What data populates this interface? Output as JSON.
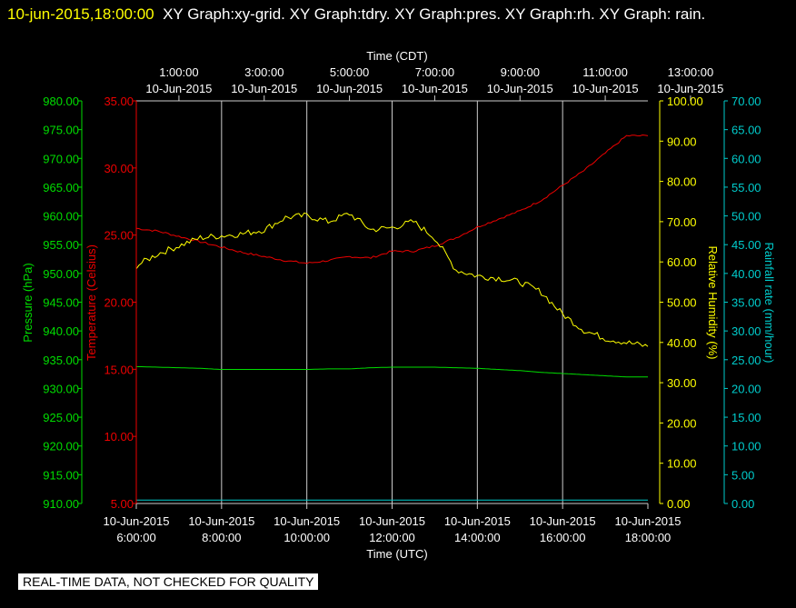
{
  "header": {
    "datetime": "10-jun-2015,18:00:00",
    "title": "XY Graph:xy-grid.  XY Graph:tdry.  XY Graph:pres.  XY Graph:rh.  XY Graph: rain."
  },
  "footer_notice": "REAL-TIME DATA, NOT CHECKED FOR QUALITY",
  "colors": {
    "background": "#000000",
    "pressure": "#00dd00",
    "temperature": "#ee0000",
    "humidity": "#ffff00",
    "rainfall": "#00cccc",
    "grid": "#cccccc"
  },
  "chart_data": {
    "type": "line",
    "x_range_utc": [
      "2015-06-10 06:00:00",
      "2015-06-10 18:00:00"
    ],
    "bottom_axis": {
      "label": "Time (UTC)",
      "ticks": [
        {
          "time": "10-Jun-2015",
          "hhmm": "6:00:00"
        },
        {
          "time": "10-Jun-2015",
          "hhmm": "8:00:00"
        },
        {
          "time": "10-Jun-2015",
          "hhmm": "10:00:00"
        },
        {
          "time": "10-Jun-2015",
          "hhmm": "12:00:00"
        },
        {
          "time": "10-Jun-2015",
          "hhmm": "14:00:00"
        },
        {
          "time": "10-Jun-2015",
          "hhmm": "16:00:00"
        },
        {
          "time": "10-Jun-2015",
          "hhmm": "18:00:00"
        }
      ]
    },
    "top_axis": {
      "label": "Time (CDT)",
      "ticks": [
        {
          "time": "1:00:00",
          "date": "10-Jun-2015"
        },
        {
          "time": "3:00:00",
          "date": "10-Jun-2015"
        },
        {
          "time": "5:00:00",
          "date": "10-Jun-2015"
        },
        {
          "time": "7:00:00",
          "date": "10-Jun-2015"
        },
        {
          "time": "9:00:00",
          "date": "10-Jun-2015"
        },
        {
          "time": "11:00:00",
          "date": "10-Jun-2015"
        },
        {
          "time": "13:00:00",
          "date": "10-Jun-2015"
        }
      ]
    },
    "axes": {
      "pressure": {
        "label": "Pressure (hPa)",
        "ylim": [
          910,
          980
        ],
        "ticks": [
          "910.00",
          "915.00",
          "920.00",
          "925.00",
          "930.00",
          "935.00",
          "940.00",
          "945.00",
          "950.00",
          "955.00",
          "960.00",
          "965.00",
          "970.00",
          "975.00",
          "980.00"
        ]
      },
      "temperature": {
        "label": "Temperature (Celsius)",
        "ylim": [
          5,
          35
        ],
        "ticks": [
          "5.00",
          "10.00",
          "15.00",
          "20.00",
          "25.00",
          "30.00",
          "35.00"
        ]
      },
      "humidity": {
        "label": "Relative Humidity (%)",
        "ylim": [
          0,
          100
        ],
        "ticks": [
          "0.00",
          "10.00",
          "20.00",
          "30.00",
          "40.00",
          "50.00",
          "60.00",
          "70.00",
          "80.00",
          "90.00",
          "100.00"
        ]
      },
      "rainfall": {
        "label": "Rainfall rate (mm/hour)",
        "ylim": [
          0,
          70
        ],
        "ticks": [
          "0.00",
          "5.00",
          "10.00",
          "15.00",
          "20.00",
          "25.00",
          "30.00",
          "35.00",
          "40.00",
          "45.00",
          "50.00",
          "55.00",
          "60.00",
          "65.00",
          "70.00"
        ]
      }
    },
    "x_hours_utc": [
      6,
      6.5,
      7,
      7.5,
      8,
      8.5,
      9,
      9.5,
      10,
      10.5,
      11,
      11.5,
      12,
      12.5,
      13,
      13.5,
      14,
      14.5,
      15,
      15.5,
      16,
      16.5,
      17,
      17.5,
      18
    ],
    "series": [
      {
        "key": "temperature",
        "axis": "temperature",
        "values": [
          25.5,
          25.3,
          24.9,
          24.5,
          24.1,
          23.7,
          23.4,
          23.1,
          22.9,
          23.1,
          23.4,
          23.3,
          23.8,
          23.8,
          24.2,
          24.8,
          25.6,
          26.2,
          26.8,
          27.6,
          28.7,
          29.8,
          31.1,
          32.4,
          32.4
        ]
      },
      {
        "key": "pressure",
        "axis": "pressure",
        "values": [
          933.8,
          933.7,
          933.6,
          933.5,
          933.3,
          933.3,
          933.3,
          933.3,
          933.3,
          933.4,
          933.4,
          933.6,
          933.7,
          933.7,
          933.7,
          933.6,
          933.5,
          933.3,
          933.1,
          932.8,
          932.6,
          932.4,
          932.2,
          932.0,
          932.0
        ]
      },
      {
        "key": "humidity",
        "axis": "humidity",
        "values": [
          59.0,
          62.0,
          64.0,
          66.0,
          66.5,
          67.0,
          68.0,
          71.0,
          71.5,
          70.0,
          72.0,
          68.0,
          68.5,
          70.0,
          66.0,
          58.0,
          56.5,
          56.0,
          55.0,
          52.5,
          47.0,
          43.0,
          41.0,
          40.0,
          39.0
        ]
      },
      {
        "key": "rainfall",
        "axis": "rainfall",
        "values": [
          0.6,
          0.6,
          0.6,
          0.6,
          0.6,
          0.6,
          0.6,
          0.6,
          0.6,
          0.6,
          0.6,
          0.6,
          0.6,
          0.6,
          0.6,
          0.6,
          0.6,
          0.6,
          0.6,
          0.6,
          0.6,
          0.6,
          0.6,
          0.6,
          0.6
        ]
      }
    ]
  }
}
